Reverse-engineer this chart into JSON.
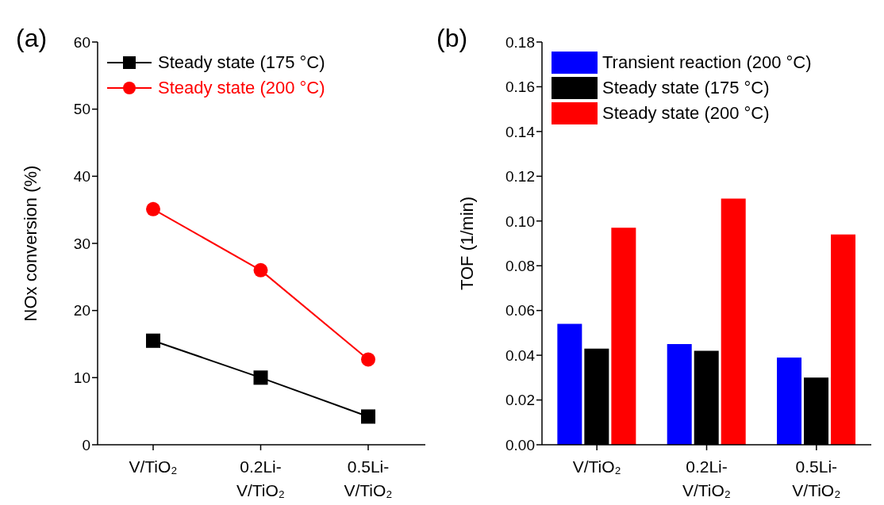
{
  "chart_data": [
    {
      "type": "line",
      "title": "(a)",
      "ylabel": "NOx conversion (%)",
      "categories": [
        "V/TiO₂",
        "0.2Li-V/TiO₂",
        "0.5Li-V/TiO₂"
      ],
      "ylim": [
        0,
        60
      ],
      "yticks": [
        0,
        10,
        20,
        30,
        40,
        50,
        60
      ],
      "legend": "top left",
      "grid": false,
      "series": [
        {
          "name": "Steady state (175 °C)",
          "color": "#000000",
          "marker": "square",
          "values": [
            15.5,
            10.0,
            4.2
          ]
        },
        {
          "name": "Steady state (200 °C)",
          "color": "#ff0000",
          "marker": "circle",
          "values": [
            35.1,
            26.0,
            12.7
          ]
        }
      ]
    },
    {
      "type": "bar",
      "title": "(b)",
      "ylabel": "TOF (1/min)",
      "categories": [
        "V/TiO₂",
        "0.2Li-V/TiO₂",
        "0.5Li-V/TiO₂"
      ],
      "ylim": [
        0,
        0.18
      ],
      "yticks": [
        {
          "value": 0,
          "label": "0.00"
        },
        {
          "value": 0.02,
          "label": "0.02"
        },
        {
          "value": 0.04,
          "label": "0.04"
        },
        {
          "value": 0.06,
          "label": "0.06"
        },
        {
          "value": 0.08,
          "label": "0.08"
        },
        {
          "value": 0.1,
          "label": "0.10"
        },
        {
          "value": 0.12,
          "label": "0.12"
        },
        {
          "value": 0.14,
          "label": "0.14"
        },
        {
          "value": 0.16,
          "label": "0.16"
        },
        {
          "value": 0.18,
          "label": "0.18"
        }
      ],
      "legend": "top left",
      "grid": false,
      "series": [
        {
          "name": "Transient reaction (200 °C)",
          "color": "#0000ff",
          "values": [
            0.054,
            0.045,
            0.039
          ]
        },
        {
          "name": "Steady state (175 °C)",
          "color": "#000000",
          "values": [
            0.043,
            0.042,
            0.03
          ]
        },
        {
          "name": "Steady state (200 °C)",
          "color": "#ff0000",
          "values": [
            0.097,
            0.11,
            0.094
          ]
        }
      ]
    }
  ]
}
